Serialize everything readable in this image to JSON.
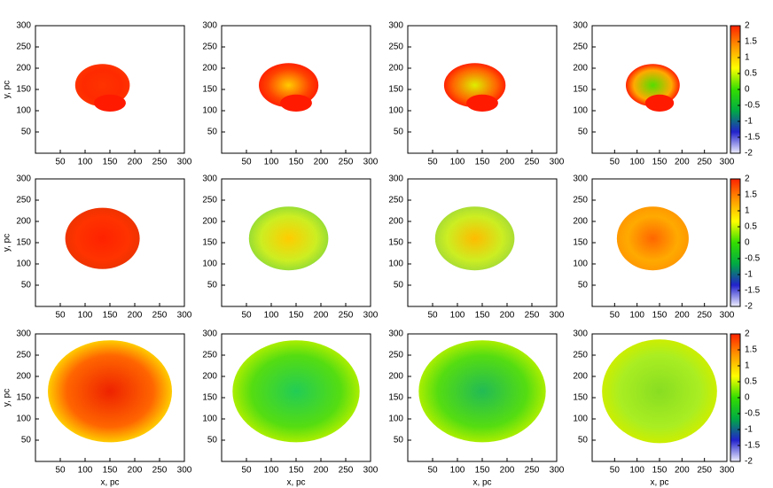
{
  "chart_data": [
    {
      "type": "heatmap",
      "xlim": [
        0,
        300
      ],
      "xticks": [
        50,
        100,
        150,
        200,
        250,
        300
      ],
      "ylim": [
        0,
        300
      ],
      "yticks": [
        50,
        100,
        150,
        200,
        250,
        300
      ],
      "ylabel": "y, pc"
    },
    {
      "type": "heatmap",
      "xlim": [
        0,
        300
      ],
      "xticks": [
        50,
        100,
        150,
        200,
        250,
        300
      ],
      "ylim": [
        0,
        300
      ],
      "yticks": [
        50,
        100,
        150,
        200,
        250,
        300
      ]
    },
    {
      "type": "heatmap",
      "xlim": [
        0,
        300
      ],
      "xticks": [
        50,
        100,
        150,
        200,
        250,
        300
      ],
      "ylim": [
        0,
        300
      ],
      "yticks": [
        50,
        100,
        150,
        200,
        250,
        300
      ]
    },
    {
      "type": "heatmap",
      "xlim": [
        0,
        300
      ],
      "xticks": [
        50,
        100,
        150,
        200,
        250,
        300
      ],
      "ylim": [
        0,
        300
      ],
      "yticks": [
        50,
        100,
        150,
        200,
        250,
        300
      ],
      "colorbar": {
        "lim": [
          -2,
          2
        ],
        "ticks": [
          2,
          1.5,
          1,
          0.5,
          0,
          -0.5,
          -1,
          -1.5,
          -2
        ],
        "colors": [
          "#eeeeff",
          "#2222cc",
          "#00aa44",
          "#33dd00",
          "#ffff00",
          "#ff9900",
          "#ff2200"
        ]
      }
    },
    {
      "type": "heatmap",
      "xlim": [
        0,
        300
      ],
      "xticks": [
        50,
        100,
        150,
        200,
        250,
        300
      ],
      "ylim": [
        0,
        300
      ],
      "yticks": [
        50,
        100,
        150,
        200,
        250,
        300
      ],
      "ylabel": "y, pc"
    },
    {
      "type": "heatmap",
      "xlim": [
        0,
        300
      ],
      "xticks": [
        50,
        100,
        150,
        200,
        250,
        300
      ],
      "ylim": [
        0,
        300
      ],
      "yticks": [
        50,
        100,
        150,
        200,
        250,
        300
      ]
    },
    {
      "type": "heatmap",
      "xlim": [
        0,
        300
      ],
      "xticks": [
        50,
        100,
        150,
        200,
        250,
        300
      ],
      "ylim": [
        0,
        300
      ],
      "yticks": [
        50,
        100,
        150,
        200,
        250,
        300
      ]
    },
    {
      "type": "heatmap",
      "xlim": [
        0,
        300
      ],
      "xticks": [
        50,
        100,
        150,
        200,
        250,
        300
      ],
      "ylim": [
        0,
        300
      ],
      "yticks": [
        50,
        100,
        150,
        200,
        250,
        300
      ],
      "colorbar": {
        "lim": [
          -2,
          2
        ],
        "ticks": [
          2,
          1.5,
          1,
          0.5,
          0,
          -0.5,
          -1,
          -1.5,
          -2
        ],
        "colors": [
          "#eeeeff",
          "#2222cc",
          "#00aa44",
          "#33dd00",
          "#ffff00",
          "#ff9900",
          "#ff2200"
        ]
      }
    },
    {
      "type": "heatmap",
      "xlim": [
        0,
        300
      ],
      "xticks": [
        50,
        100,
        150,
        200,
        250,
        300
      ],
      "ylim": [
        0,
        300
      ],
      "yticks": [
        50,
        100,
        150,
        200,
        250,
        300
      ],
      "ylabel": "y, pc",
      "xlabel": "x, pc"
    },
    {
      "type": "heatmap",
      "xlim": [
        0,
        300
      ],
      "xticks": [
        50,
        100,
        150,
        200,
        250,
        300
      ],
      "ylim": [
        0,
        300
      ],
      "yticks": [
        50,
        100,
        150,
        200,
        250,
        300
      ],
      "xlabel": "x, pc"
    },
    {
      "type": "heatmap",
      "xlim": [
        0,
        300
      ],
      "xticks": [
        50,
        100,
        150,
        200,
        250,
        300
      ],
      "ylim": [
        0,
        300
      ],
      "yticks": [
        50,
        100,
        150,
        200,
        250,
        300
      ],
      "xlabel": "x, pc"
    },
    {
      "type": "heatmap",
      "xlim": [
        0,
        300
      ],
      "xticks": [
        50,
        100,
        150,
        200,
        250,
        300
      ],
      "ylim": [
        0,
        300
      ],
      "yticks": [
        50,
        100,
        150,
        200,
        250,
        300
      ],
      "xlabel": "x, pc",
      "colorbar": {
        "lim": [
          -2,
          2
        ],
        "ticks": [
          2,
          1.5,
          1,
          0.5,
          0,
          -0.5,
          -1,
          -1.5,
          -2
        ],
        "colors": [
          "#eeeeff",
          "#2222cc",
          "#00aa44",
          "#33dd00",
          "#ffff00",
          "#ff9900",
          "#ff2200"
        ]
      }
    }
  ]
}
